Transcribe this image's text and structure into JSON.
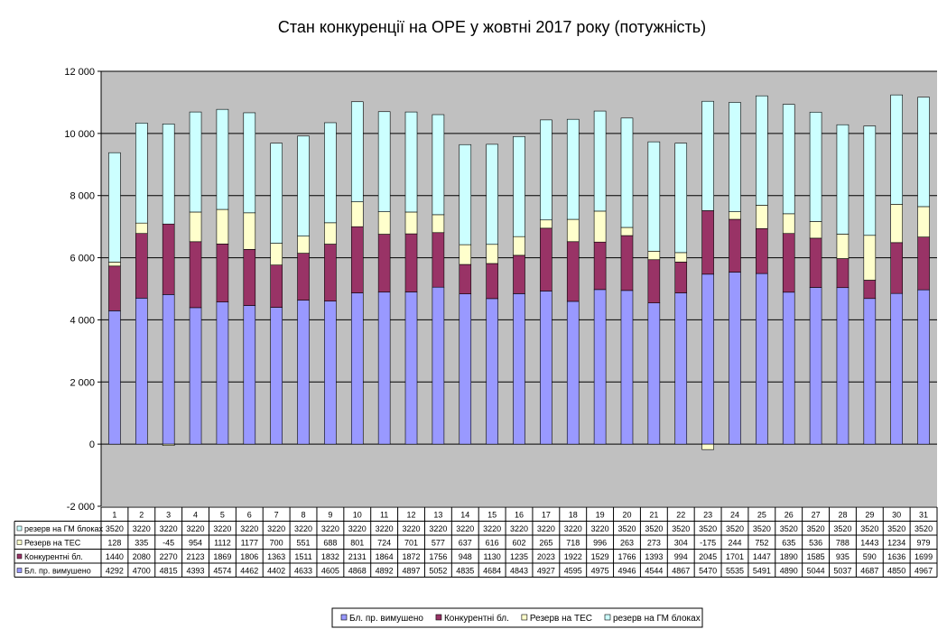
{
  "chart_data": {
    "type": "bar",
    "stacked": true,
    "title": "Стан конкуренції на ОРЕ  у жовтні 2017 року (потужність)",
    "categories": [
      "1",
      "2",
      "3",
      "4",
      "5",
      "6",
      "7",
      "8",
      "9",
      "10",
      "11",
      "12",
      "13",
      "14",
      "15",
      "16",
      "17",
      "18",
      "19",
      "20",
      "21",
      "22",
      "23",
      "24",
      "25",
      "26",
      "27",
      "28",
      "29",
      "30",
      "31"
    ],
    "ylim": [
      -2000,
      12000
    ],
    "yticks": [
      -2000,
      0,
      2000,
      4000,
      6000,
      8000,
      10000,
      12000
    ],
    "ytick_labels": [
      "-2 000",
      "0",
      "2 000",
      "4 000",
      "6 000",
      "8 000",
      "10 000",
      "12 000"
    ],
    "grid": true,
    "legend_position": "bottom",
    "series": [
      {
        "name": "Бл. пр. вимушено",
        "color": "#9999ff",
        "values": [
          4292,
          4700,
          4815,
          4393,
          4574,
          4462,
          4402,
          4633,
          4605,
          4868,
          4892,
          4897,
          5052,
          4835,
          4684,
          4843,
          4927,
          4595,
          4975,
          4946,
          4544,
          4867,
          5470,
          5535,
          5491,
          4890,
          5044,
          5037,
          4687,
          4850,
          4967
        ]
      },
      {
        "name": "Конкурентні бл.",
        "color": "#993366",
        "values": [
          1440,
          2080,
          2270,
          2123,
          1869,
          1806,
          1363,
          1511,
          1832,
          2131,
          1864,
          1872,
          1756,
          948,
          1130,
          1235,
          2023,
          1922,
          1529,
          1766,
          1393,
          994,
          2045,
          1701,
          1447,
          1890,
          1585,
          935,
          590,
          1636,
          1699
        ]
      },
      {
        "name": "Резерв на ТЕС",
        "color": "#ffffcc",
        "values": [
          128,
          335,
          -45,
          954,
          1112,
          1177,
          700,
          551,
          688,
          801,
          724,
          701,
          577,
          637,
          616,
          602,
          265,
          718,
          996,
          263,
          273,
          304,
          -175,
          244,
          752,
          635,
          536,
          788,
          1443,
          1234,
          979
        ]
      },
      {
        "name": "резерв на ГМ блоках",
        "color": "#ccffff",
        "values": [
          3520,
          3220,
          3220,
          3220,
          3220,
          3220,
          3220,
          3220,
          3220,
          3220,
          3220,
          3220,
          3220,
          3220,
          3220,
          3220,
          3220,
          3220,
          3220,
          3520,
          3520,
          3520,
          3520,
          3520,
          3520,
          3520,
          3520,
          3520,
          3520,
          3520,
          3520
        ]
      }
    ],
    "table_rows": [
      {
        "label": "резерв на ГМ блоках",
        "series_index": 3
      },
      {
        "label": "Резерв на ТЕС",
        "series_index": 2
      },
      {
        "label": "Конкурентні бл.",
        "series_index": 1
      },
      {
        "label": "Бл. пр. вимушено",
        "series_index": 0
      }
    ]
  }
}
